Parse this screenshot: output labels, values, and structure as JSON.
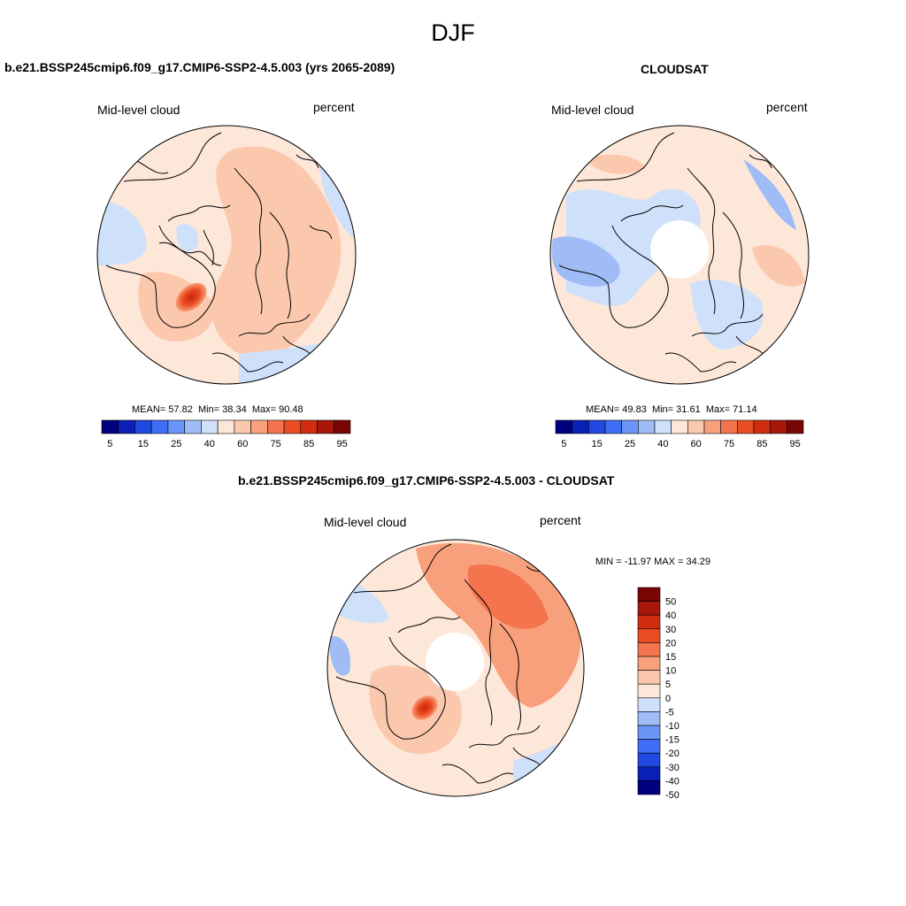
{
  "title": "DJF",
  "panels": [
    {
      "title": "b.e21.BSSP245cmip6.f09_g17.CMIP6-SSP2-4.5.003 (yrs 2065-2089)",
      "variable": "Mid-level cloud",
      "units": "percent",
      "stats": {
        "mean_label": "MEAN=",
        "mean": "57.82",
        "min_label": "Min=",
        "min": "38.34",
        "max_label": "Max=",
        "max": "90.48"
      },
      "colorbar_ticks": [
        "5",
        "15",
        "25",
        "40",
        "60",
        "75",
        "85",
        "95"
      ]
    },
    {
      "title": "CLOUDSAT",
      "variable": "Mid-level cloud",
      "units": "percent",
      "stats": {
        "mean_label": "MEAN=",
        "mean": "49.83",
        "min_label": "Min=",
        "min": "31.61",
        "max_label": "Max=",
        "max": "71.14"
      },
      "colorbar_ticks": [
        "5",
        "15",
        "25",
        "40",
        "60",
        "75",
        "85",
        "95"
      ]
    },
    {
      "title": "b.e21.BSSP245cmip6.f09_g17.CMIP6-SSP2-4.5.003 - CLOUDSAT",
      "variable": "Mid-level cloud",
      "units": "percent",
      "stats_text": "MIN = -11.97 MAX =  34.29",
      "colorbar_ticks": [
        "50",
        "40",
        "30",
        "20",
        "15",
        "10",
        "5",
        "0",
        "-5",
        "-10",
        "-15",
        "-20",
        "-30",
        "-40",
        "-50"
      ]
    }
  ],
  "colors": {
    "abs_scale": [
      "#00007f",
      "#0a1fb5",
      "#1f49e0",
      "#3d6ef5",
      "#6b95f7",
      "#9fbcf7",
      "#cfe0fa",
      "#fde7d8",
      "#fbc8ad",
      "#f8a07c",
      "#f4744d",
      "#ea4d24",
      "#d02d0f",
      "#a8170a",
      "#7a0505"
    ],
    "diff_scale": [
      "#7a0505",
      "#a8170a",
      "#d02d0f",
      "#ea4d24",
      "#f4744d",
      "#f8a07c",
      "#fbc8ad",
      "#fde7d8",
      "#cfe0fa",
      "#9fbcf7",
      "#6b95f7",
      "#3d6ef5",
      "#1f49e0",
      "#0a1fb5",
      "#00007f"
    ]
  }
}
